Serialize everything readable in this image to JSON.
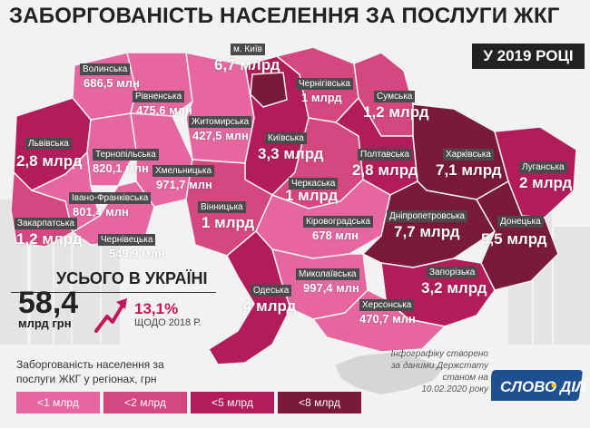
{
  "title": "ЗАБОРГОВАНІСТЬ НАСЕЛЕННЯ ЗА ПОСЛУГИ ЖКГ",
  "year_badge": "У 2019 РОЦІ",
  "colors": {
    "lt1": "#e667a0",
    "lt2": "#d5477f",
    "lt5": "#b21d59",
    "lt8": "#7a1a3a",
    "background": "#f2f2f2",
    "label_bg": "#4a4a4a"
  },
  "map": {
    "regions": [
      {
        "name": "Волинська",
        "value": "686,5 млн",
        "tier": "lt1"
      },
      {
        "name": "Рівненська",
        "value": "475,6 млн",
        "tier": "lt1"
      },
      {
        "name": "м. Київ",
        "value": "6,7 млрд",
        "tier": "lt8"
      },
      {
        "name": "Чернігівська",
        "value": "1 млрд",
        "tier": "lt2"
      },
      {
        "name": "Сумська",
        "value": "1,2 млрд",
        "tier": "lt2"
      },
      {
        "name": "Житомирська",
        "value": "427,5 млн",
        "tier": "lt1"
      },
      {
        "name": "Київська",
        "value": "3,3 млрд",
        "tier": "lt5"
      },
      {
        "name": "Полтавська",
        "value": "2,8 млрд",
        "tier": "lt5"
      },
      {
        "name": "Харківська",
        "value": "7,1 млрд",
        "tier": "lt8"
      },
      {
        "name": "Луганська",
        "value": "2 млрд",
        "tier": "lt5"
      },
      {
        "name": "Львівська",
        "value": "2,8 млрд",
        "tier": "lt5"
      },
      {
        "name": "Тернопільська",
        "value": "820,1 млн",
        "tier": "lt1"
      },
      {
        "name": "Хмельницька",
        "value": "971,7 млн",
        "tier": "lt1"
      },
      {
        "name": "Черкаська",
        "value": "1 млрд",
        "tier": "lt2"
      },
      {
        "name": "Івано-Франківська",
        "value": "801,4 млн",
        "tier": "lt1"
      },
      {
        "name": "Вінницька",
        "value": "1 млрд",
        "tier": "lt2"
      },
      {
        "name": "Кіровоградська",
        "value": "678 млн",
        "tier": "lt1"
      },
      {
        "name": "Дніпропетровська",
        "value": "7,7 млрд",
        "tier": "lt8"
      },
      {
        "name": "Донецька",
        "value": "5,5 млрд",
        "tier": "lt8"
      },
      {
        "name": "Закарпатська",
        "value": "1,2 млрд",
        "tier": "lt2"
      },
      {
        "name": "Чернівецька",
        "value": "549,9 млн",
        "tier": "lt1"
      },
      {
        "name": "Одеська",
        "value": "4 млрд",
        "tier": "lt5"
      },
      {
        "name": "Миколаївська",
        "value": "997,4 млн",
        "tier": "lt1"
      },
      {
        "name": "Запорізька",
        "value": "3,2 млрд",
        "tier": "lt5"
      },
      {
        "name": "Херсонська",
        "value": "470,7 млн",
        "tier": "lt1"
      }
    ]
  },
  "total": {
    "heading": "УСЬОГО В УКРАЇНІ",
    "amount": "58,4",
    "unit": "млрд грн",
    "growth": "13,1%",
    "growth_caption": "ЩОДО 2018 Р."
  },
  "legend": {
    "title_lines": [
      "Заборгованість населення за",
      "послуги ЖКГ у регіонах, грн"
    ],
    "items": [
      "<1 млрд",
      "<2 млрд",
      "<5 млрд",
      "<8 млрд"
    ]
  },
  "source": {
    "lines": [
      "Інфографіку створено",
      "за даними Держстату",
      "станом на",
      "10.02.2020 року"
    ]
  },
  "logo": {
    "word1": "СЛОВО",
    "word2": "ДІЛО"
  }
}
